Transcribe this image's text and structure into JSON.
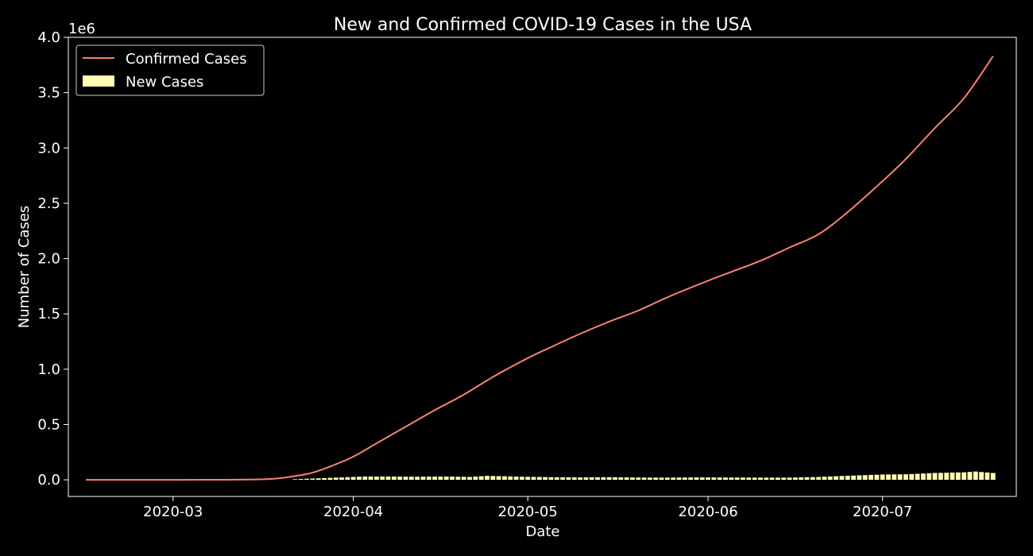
{
  "colors": {
    "background": "#000000",
    "axes": "#ffffff",
    "confirmed_line": "#fa8174",
    "new_bars": "#feffb3"
  },
  "chart_data": {
    "type": "line",
    "title": "New and Confirmed COVID-19 Cases in the USA",
    "xlabel": "Date",
    "ylabel": "Number of Cases",
    "y_offset_label": "1e6",
    "xlim": [
      "2020-02-12",
      "2020-07-24"
    ],
    "ylim": [
      -150000,
      4000000
    ],
    "grid": false,
    "legend_position": "upper-left",
    "x_ticks": [
      {
        "date": "2020-03-01",
        "label": "2020-03"
      },
      {
        "date": "2020-04-01",
        "label": "2020-04"
      },
      {
        "date": "2020-05-01",
        "label": "2020-05"
      },
      {
        "date": "2020-06-01",
        "label": "2020-06"
      },
      {
        "date": "2020-07-01",
        "label": "2020-07"
      }
    ],
    "y_ticks": [
      {
        "value": 0,
        "label": "0.0"
      },
      {
        "value": 500000,
        "label": "0.5"
      },
      {
        "value": 1000000,
        "label": "1.0"
      },
      {
        "value": 1500000,
        "label": "1.5"
      },
      {
        "value": 2000000,
        "label": "2.0"
      },
      {
        "value": 2500000,
        "label": "2.5"
      },
      {
        "value": 3000000,
        "label": "3.0"
      },
      {
        "value": 3500000,
        "label": "3.5"
      },
      {
        "value": 4000000,
        "label": "4.0"
      }
    ],
    "series": [
      {
        "name": "Confirmed Cases",
        "kind": "line",
        "points": [
          [
            "2020-02-15",
            15
          ],
          [
            "2020-03-01",
            80
          ],
          [
            "2020-03-10",
            1000
          ],
          [
            "2020-03-15",
            3500
          ],
          [
            "2020-03-18",
            9000
          ],
          [
            "2020-03-20",
            19000
          ],
          [
            "2020-03-23",
            43000
          ],
          [
            "2020-03-25",
            65000
          ],
          [
            "2020-03-28",
            120000
          ],
          [
            "2020-04-01",
            210000
          ],
          [
            "2020-04-05",
            330000
          ],
          [
            "2020-04-10",
            480000
          ],
          [
            "2020-04-15",
            630000
          ],
          [
            "2020-04-20",
            770000
          ],
          [
            "2020-04-25",
            930000
          ],
          [
            "2020-05-01",
            1100000
          ],
          [
            "2020-05-05",
            1200000
          ],
          [
            "2020-05-10",
            1320000
          ],
          [
            "2020-05-15",
            1430000
          ],
          [
            "2020-05-20",
            1530000
          ],
          [
            "2020-05-25",
            1650000
          ],
          [
            "2020-06-01",
            1800000
          ],
          [
            "2020-06-05",
            1880000
          ],
          [
            "2020-06-10",
            1980000
          ],
          [
            "2020-06-15",
            2100000
          ],
          [
            "2020-06-20",
            2220000
          ],
          [
            "2020-06-25",
            2420000
          ],
          [
            "2020-07-01",
            2700000
          ],
          [
            "2020-07-05",
            2900000
          ],
          [
            "2020-07-10",
            3180000
          ],
          [
            "2020-07-15",
            3450000
          ],
          [
            "2020-07-20",
            3830000
          ]
        ]
      },
      {
        "name": "New Cases",
        "kind": "bar",
        "start_date": "2020-03-22",
        "end_date": "2020-07-20",
        "points": [
          [
            "2020-03-22",
            6000
          ],
          [
            "2020-03-26",
            14000
          ],
          [
            "2020-03-30",
            22000
          ],
          [
            "2020-04-03",
            30000
          ],
          [
            "2020-04-07",
            30000
          ],
          [
            "2020-04-12",
            28000
          ],
          [
            "2020-04-17",
            30000
          ],
          [
            "2020-04-21",
            26000
          ],
          [
            "2020-04-24",
            36000
          ],
          [
            "2020-04-30",
            28000
          ],
          [
            "2020-05-05",
            24000
          ],
          [
            "2020-05-10",
            22000
          ],
          [
            "2020-05-15",
            24000
          ],
          [
            "2020-05-20",
            21000
          ],
          [
            "2020-05-25",
            20000
          ],
          [
            "2020-05-30",
            22000
          ],
          [
            "2020-06-05",
            21000
          ],
          [
            "2020-06-10",
            20000
          ],
          [
            "2020-06-15",
            20000
          ],
          [
            "2020-06-20",
            26000
          ],
          [
            "2020-06-25",
            37000
          ],
          [
            "2020-07-01",
            48000
          ],
          [
            "2020-07-05",
            50000
          ],
          [
            "2020-07-10",
            62000
          ],
          [
            "2020-07-15",
            68000
          ],
          [
            "2020-07-17",
            75000
          ],
          [
            "2020-07-20",
            62000
          ]
        ]
      }
    ]
  }
}
